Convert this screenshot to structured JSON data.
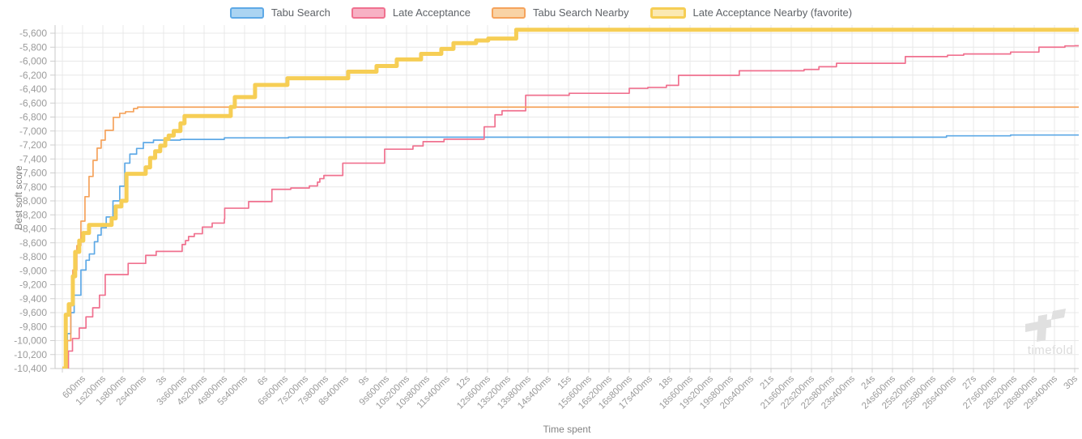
{
  "legend": {
    "items": [
      {
        "label": "Tabu Search",
        "fill": "#abd4f2",
        "border": "#5ea9e6",
        "thick": false
      },
      {
        "label": "Late Acceptance",
        "fill": "#f7b1c4",
        "border": "#f0718f",
        "thick": false
      },
      {
        "label": "Tabu Search Nearby",
        "fill": "#f9d3a5",
        "border": "#f5a35c",
        "thick": false
      },
      {
        "label": "Late Acceptance Nearby (favorite)",
        "fill": "#fbe9b3",
        "border": "#f6ce55",
        "thick": true
      }
    ]
  },
  "axes": {
    "y_title": "Best soft score",
    "x_title": "Time spent",
    "y_ticks": [
      "-5,600",
      "-5,800",
      "-6,000",
      "-6,200",
      "-6,400",
      "-6,600",
      "-6,800",
      "-7,000",
      "-7,200",
      "-7,400",
      "-7,600",
      "-7,800",
      "-8,000",
      "-8,200",
      "-8,400",
      "-8,600",
      "-8,800",
      "-9,000",
      "-9,200",
      "-9,400",
      "-9,600",
      "-9,800",
      "-10,000",
      "-10,200",
      "-10,400"
    ],
    "x_ticks": [
      "600ms",
      "1s200ms",
      "1s800ms",
      "2s400ms",
      "3s",
      "3s600ms",
      "4s200ms",
      "4s800ms",
      "5s400ms",
      "6s",
      "6s600ms",
      "7s200ms",
      "7s800ms",
      "8s400ms",
      "9s",
      "9s600ms",
      "10s200ms",
      "10s800ms",
      "11s400ms",
      "12s",
      "12s600ms",
      "13s200ms",
      "13s800ms",
      "14s400ms",
      "15s",
      "15s600ms",
      "16s200ms",
      "16s800ms",
      "17s400ms",
      "18s",
      "18s600ms",
      "19s200ms",
      "19s800ms",
      "20s400ms",
      "21s",
      "21s600ms",
      "22s200ms",
      "22s800ms",
      "23s400ms",
      "24s",
      "24s600ms",
      "25s200ms",
      "25s800ms",
      "26s400ms",
      "27s",
      "27s600ms",
      "28s200ms",
      "28s800ms",
      "29s400ms",
      "30s"
    ]
  },
  "watermark": {
    "text": "timefold"
  },
  "chart_data": {
    "type": "line",
    "stepped": true,
    "title": "",
    "xlabel": "Time spent",
    "ylabel": "Best soft score",
    "x_unit_ms": true,
    "xlim": [
      0,
      30000
    ],
    "ylim": [
      -10400,
      -5480
    ],
    "x_tick_interval_ms": 600,
    "y_tick_interval": 200,
    "grid": true,
    "legend_position": "top",
    "series": [
      {
        "name": "Tabu Search",
        "color": "#5ea9e6",
        "width": 1.7,
        "points": [
          [
            100,
            -10400
          ],
          [
            150,
            -9900
          ],
          [
            250,
            -9600
          ],
          [
            350,
            -9350
          ],
          [
            550,
            -8990
          ],
          [
            700,
            -8850
          ],
          [
            800,
            -8760
          ],
          [
            950,
            -8585
          ],
          [
            1050,
            -8490
          ],
          [
            1150,
            -8385
          ],
          [
            1300,
            -8230
          ],
          [
            1500,
            -8000
          ],
          [
            1700,
            -7790
          ],
          [
            1850,
            -7460
          ],
          [
            2000,
            -7330
          ],
          [
            2200,
            -7250
          ],
          [
            2400,
            -7165
          ],
          [
            2700,
            -7130
          ],
          [
            3500,
            -7120
          ],
          [
            4800,
            -7098
          ],
          [
            6700,
            -7088
          ],
          [
            26200,
            -7069
          ],
          [
            28100,
            -7057
          ],
          [
            30000,
            -7057
          ]
        ]
      },
      {
        "name": "Late Acceptance",
        "color": "#f0718f",
        "width": 1.7,
        "points": [
          [
            0,
            -10400
          ],
          [
            180,
            -10150
          ],
          [
            300,
            -9970
          ],
          [
            500,
            -9820
          ],
          [
            700,
            -9660
          ],
          [
            900,
            -9530
          ],
          [
            1100,
            -9350
          ],
          [
            1270,
            -9055
          ],
          [
            1950,
            -8895
          ],
          [
            2470,
            -8780
          ],
          [
            2780,
            -8723
          ],
          [
            3550,
            -8625
          ],
          [
            3650,
            -8568
          ],
          [
            3740,
            -8510
          ],
          [
            3910,
            -8470
          ],
          [
            4150,
            -8375
          ],
          [
            4440,
            -8318
          ],
          [
            4800,
            -8260
          ],
          [
            4810,
            -8105
          ],
          [
            5520,
            -8010
          ],
          [
            6210,
            -7835
          ],
          [
            6770,
            -7816
          ],
          [
            7320,
            -7786
          ],
          [
            7560,
            -7732
          ],
          [
            7630,
            -7682
          ],
          [
            7750,
            -7636
          ],
          [
            8310,
            -7460
          ],
          [
            9550,
            -7260
          ],
          [
            10390,
            -7214
          ],
          [
            10690,
            -7152
          ],
          [
            11310,
            -7117
          ],
          [
            12500,
            -6940
          ],
          [
            12820,
            -6768
          ],
          [
            13030,
            -6710
          ],
          [
            13730,
            -6488
          ],
          [
            15020,
            -6460
          ],
          [
            16800,
            -6389
          ],
          [
            17350,
            -6376
          ],
          [
            17900,
            -6346
          ],
          [
            18260,
            -6203
          ],
          [
            20060,
            -6138
          ],
          [
            21980,
            -6119
          ],
          [
            22420,
            -6080
          ],
          [
            22940,
            -6030
          ],
          [
            24980,
            -5935
          ],
          [
            26230,
            -5915
          ],
          [
            26710,
            -5897
          ],
          [
            28100,
            -5870
          ],
          [
            28940,
            -5800
          ],
          [
            29710,
            -5782
          ],
          [
            30000,
            -5780
          ]
        ]
      },
      {
        "name": "Tabu Search Nearby",
        "color": "#f5a35c",
        "width": 1.7,
        "points": [
          [
            0,
            -10400
          ],
          [
            150,
            -10000
          ],
          [
            250,
            -9500
          ],
          [
            310,
            -8990
          ],
          [
            430,
            -8640
          ],
          [
            550,
            -8290
          ],
          [
            670,
            -7940
          ],
          [
            790,
            -7650
          ],
          [
            910,
            -7420
          ],
          [
            1030,
            -7245
          ],
          [
            1150,
            -7130
          ],
          [
            1270,
            -6990
          ],
          [
            1510,
            -6805
          ],
          [
            1700,
            -6747
          ],
          [
            1870,
            -6724
          ],
          [
            2110,
            -6678
          ],
          [
            2230,
            -6658
          ],
          [
            30000,
            -6658
          ]
        ]
      },
      {
        "name": "Late Acceptance Nearby (favorite)",
        "color": "#f6ce55",
        "width": 5,
        "points": [
          [
            0,
            -10400
          ],
          [
            100,
            -9630
          ],
          [
            190,
            -9480
          ],
          [
            310,
            -9080
          ],
          [
            380,
            -8730
          ],
          [
            500,
            -8570
          ],
          [
            620,
            -8460
          ],
          [
            790,
            -8345
          ],
          [
            1460,
            -8250
          ],
          [
            1580,
            -8080
          ],
          [
            1750,
            -8000
          ],
          [
            1900,
            -7613
          ],
          [
            2470,
            -7520
          ],
          [
            2600,
            -7385
          ],
          [
            2750,
            -7290
          ],
          [
            2900,
            -7210
          ],
          [
            3050,
            -7115
          ],
          [
            3150,
            -7065
          ],
          [
            3300,
            -7000
          ],
          [
            3500,
            -6890
          ],
          [
            3620,
            -6785
          ],
          [
            4990,
            -6655
          ],
          [
            5110,
            -6515
          ],
          [
            5710,
            -6340
          ],
          [
            6670,
            -6245
          ],
          [
            8470,
            -6150
          ],
          [
            9310,
            -6070
          ],
          [
            9910,
            -5975
          ],
          [
            10630,
            -5895
          ],
          [
            11230,
            -5825
          ],
          [
            11590,
            -5742
          ],
          [
            12260,
            -5704
          ],
          [
            12620,
            -5677
          ],
          [
            13450,
            -5550
          ],
          [
            30000,
            -5550
          ]
        ]
      }
    ]
  }
}
